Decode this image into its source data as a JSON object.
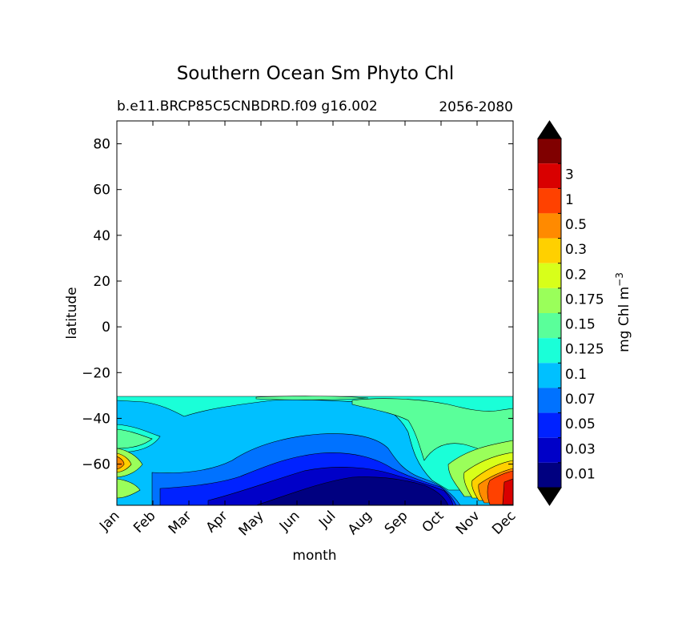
{
  "chart_data": {
    "type": "contourf",
    "title": "Southern Ocean Sm Phyto Chl",
    "subtitle_left": "b.e11.BRCP85C5CNBDRD.f09 g16.002",
    "subtitle_right": "2056-2080",
    "xlabel": "month",
    "ylabel": "latitude",
    "x_ticks": [
      "Jan",
      "Feb",
      "Mar",
      "Apr",
      "May",
      "Jun",
      "Jul",
      "Aug",
      "Sep",
      "Oct",
      "Nov",
      "Dec"
    ],
    "y_ticks": [
      80,
      60,
      40,
      20,
      0,
      -20,
      -40,
      -60
    ],
    "y_tick_labels": [
      "80",
      "60",
      "40",
      "20",
      "0",
      "−20",
      "−40",
      "−60"
    ],
    "ylim": [
      -78,
      90
    ],
    "data_lat_max": -31,
    "colorbar": {
      "label": "mg Chl m",
      "label_sup": "−3",
      "levels": [
        "0.01",
        "0.03",
        "0.05",
        "0.07",
        "0.1",
        "0.125",
        "0.15",
        "0.175",
        "0.2",
        "0.3",
        "0.5",
        "1",
        "3"
      ],
      "colors": [
        "#000080",
        "#0000c8",
        "#0022ff",
        "#0072ff",
        "#00c0ff",
        "#1affd8",
        "#5aff9a",
        "#9aff5a",
        "#d8ff1a",
        "#ffd000",
        "#ff8a00",
        "#ff4100",
        "#d90000",
        "#800000"
      ],
      "extend": "both"
    },
    "bands": [
      {
        "level": 4,
        "color_index": 4
      },
      {
        "level": 5,
        "color_index": 5
      },
      {
        "level": 6,
        "color_index": 6
      },
      {
        "level": 3,
        "color_index": 3
      },
      {
        "level": 2,
        "color_index": 2
      },
      {
        "level": 1,
        "color_index": 1
      },
      {
        "level": 0,
        "color_index": 0
      }
    ]
  }
}
